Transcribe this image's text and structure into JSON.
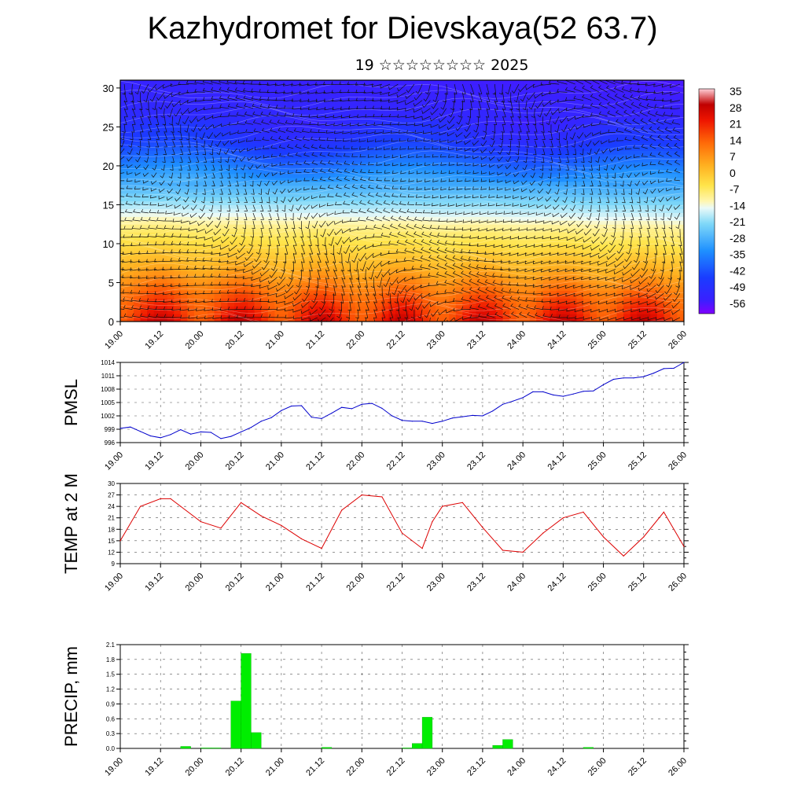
{
  "title": "Kazhydromet for Dievskaya(52 63.7)",
  "subtitle": "19 ☆☆☆☆☆☆☆☆ 2025",
  "x_labels": [
    "19.00",
    "19.12",
    "20.00",
    "20.12",
    "21.00",
    "21.12",
    "22.00",
    "22.12",
    "23.00",
    "23.12",
    "24.00",
    "24.12",
    "25.00",
    "25.12",
    "26.00"
  ],
  "colors": {
    "pmsl_line": "#0000cc",
    "temp_line": "#dd0000",
    "precip_bar": "#00ee00",
    "axis": "#000000"
  },
  "chart_data": [
    {
      "type": "heatmap",
      "title": "",
      "xlabel": "",
      "ylabel": "",
      "y_ticks": [
        0,
        5,
        10,
        15,
        20,
        25,
        30
      ],
      "ylim": [
        0,
        31
      ],
      "colorbar_labels": [
        "35",
        "28",
        "21",
        "14",
        "7",
        "0",
        "-7",
        "-14",
        "-21",
        "-28",
        "-35",
        "-42",
        "-49",
        "-56"
      ],
      "colorbar_range": [
        -60,
        38
      ],
      "temperature_profile": {
        "heights": [
          0,
          3,
          6,
          9,
          12,
          15,
          17,
          20,
          23,
          26,
          29,
          31
        ],
        "mean_values": [
          24,
          17,
          8,
          0,
          -7,
          -18,
          -25,
          -35,
          -45,
          -50,
          -52,
          -53
        ]
      },
      "overlay": "wind barbs"
    },
    {
      "type": "line",
      "ylabel": "PMSL",
      "y_ticks": [
        996,
        999,
        1002,
        1005,
        1008,
        1011,
        1014
      ],
      "ylim": [
        996,
        1014
      ],
      "x": [
        0,
        3,
        6,
        9,
        12,
        15,
        18,
        21,
        24,
        27,
        30,
        33,
        36,
        39,
        42,
        45,
        48,
        51,
        54,
        57,
        60,
        63,
        66,
        69,
        72,
        75,
        78,
        81,
        84,
        87,
        90,
        93,
        96,
        99,
        102,
        105,
        108,
        111,
        114,
        117,
        120,
        123,
        126,
        129,
        132,
        135,
        138,
        141,
        144,
        147,
        150,
        153,
        156,
        159,
        162,
        165,
        168
      ],
      "values": [
        999.2,
        999.5,
        998.5,
        997.5,
        997.1,
        997.8,
        998.9,
        997.9,
        998.4,
        998.3,
        996.9,
        997.4,
        998.4,
        999.4,
        1000.8,
        1001.6,
        1003.2,
        1004.2,
        1004.3,
        1001.7,
        1001.4,
        1002.6,
        1003.9,
        1003.6,
        1004.6,
        1004.8,
        1003.7,
        1002.0,
        1001.0,
        1000.8,
        1000.8,
        1000.3,
        1000.8,
        1001.5,
        1001.8,
        1002.1,
        1002.0,
        1003.1,
        1004.6,
        1005.3,
        1006.1,
        1007.4,
        1007.4,
        1006.7,
        1006.4,
        1006.9,
        1007.5,
        1007.6,
        1009.0,
        1010.2,
        1010.5,
        1010.5,
        1010.8,
        1011.6,
        1012.6,
        1012.7,
        1014.0
      ]
    },
    {
      "type": "line",
      "ylabel": "TEMP at 2 M",
      "y_ticks": [
        9,
        12,
        15,
        18,
        21,
        24,
        27,
        30
      ],
      "ylim": [
        9,
        30
      ],
      "x": [
        0,
        6,
        12,
        15,
        18,
        24,
        30,
        36,
        42,
        48,
        54,
        60,
        66,
        72,
        78,
        84,
        90,
        93,
        96,
        102,
        108,
        114,
        120,
        126,
        132,
        138,
        144,
        150,
        156,
        162,
        168
      ],
      "values": [
        15,
        24,
        26,
        26,
        24,
        20,
        18.3,
        25,
        21.5,
        19,
        15.5,
        13,
        23,
        27,
        26.5,
        17,
        13,
        20,
        24,
        25,
        18.5,
        12.5,
        12,
        17,
        21,
        22.5,
        16,
        11,
        16,
        22.5,
        13.5
      ]
    },
    {
      "type": "bar",
      "ylabel": "PRECIP, mm",
      "y_ticks": [
        "0.0",
        "0.3",
        "0.6",
        "0.9",
        "1.2",
        "1.5",
        "1.8",
        "2.1"
      ],
      "ylim": [
        0,
        2.1
      ],
      "bar_width_hours": 3,
      "x": [
        18,
        24,
        27,
        33,
        36,
        39,
        60,
        84,
        87,
        90,
        111,
        114,
        138
      ],
      "values": [
        0.04,
        0.01,
        0.01,
        0.96,
        1.92,
        0.32,
        0.02,
        0.01,
        0.1,
        0.63,
        0.06,
        0.18,
        0.02
      ]
    }
  ]
}
